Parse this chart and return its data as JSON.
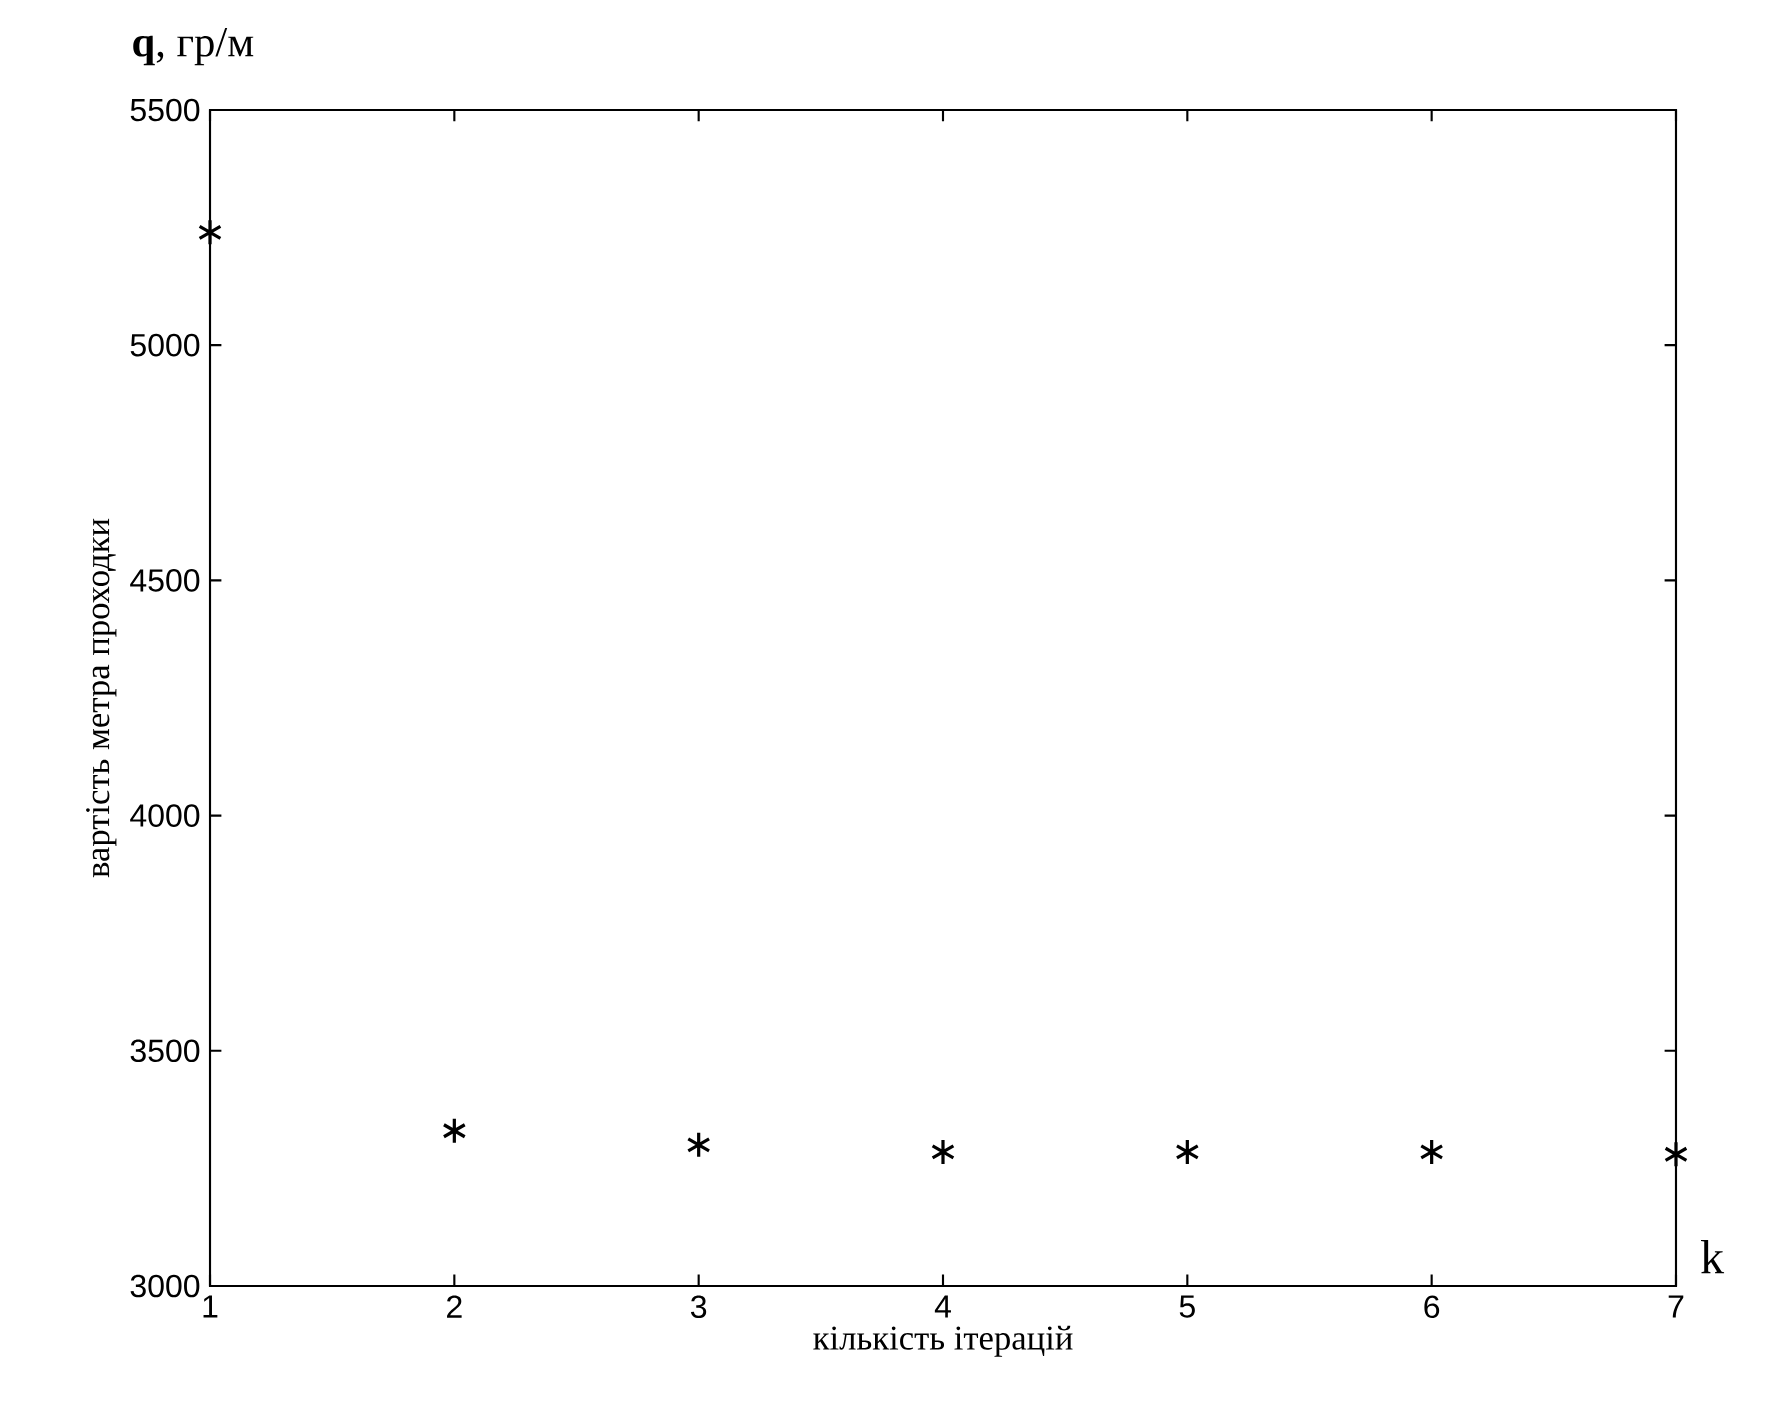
{
  "chart_data": {
    "type": "scatter",
    "x": [
      1,
      2,
      3,
      4,
      5,
      6,
      7
    ],
    "values": [
      5240,
      3330,
      3300,
      3285,
      3285,
      3285,
      3280
    ],
    "color": "#000000",
    "marker": "cross",
    "xlim": [
      1,
      7
    ],
    "xticks": [
      1,
      2,
      3,
      4,
      5,
      6,
      7
    ],
    "ylim": [
      3000,
      5500
    ],
    "yticks": [
      3000,
      3500,
      4000,
      4500,
      5000,
      5500
    ],
    "xlabel": "кількість ітерацій",
    "ylabel": "вартість метра проходки",
    "annotations": [
      "**q**, гр/м",
      "k"
    ],
    "grid": false
  }
}
